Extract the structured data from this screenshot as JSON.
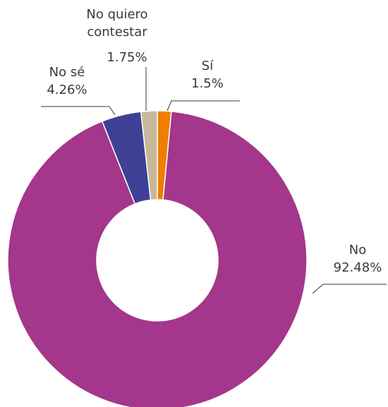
{
  "chart_data": {
    "type": "pie",
    "variant": "donut",
    "start_angle_deg": 0,
    "direction": "clockwise",
    "slices": [
      {
        "label": "Sí",
        "value": 1.5,
        "value_label": "1.5%",
        "color": "#F07D00"
      },
      {
        "label": "No",
        "value": 92.48,
        "value_label": "92.48%",
        "color": "#A4368B"
      },
      {
        "label": "No sé",
        "value": 4.26,
        "value_label": "4.26%",
        "color": "#3F4196"
      },
      {
        "label_lines": [
          "No quiero",
          "contestar"
        ],
        "value": 1.75,
        "value_label": "1.75%",
        "color": "#C8B89A"
      }
    ]
  }
}
